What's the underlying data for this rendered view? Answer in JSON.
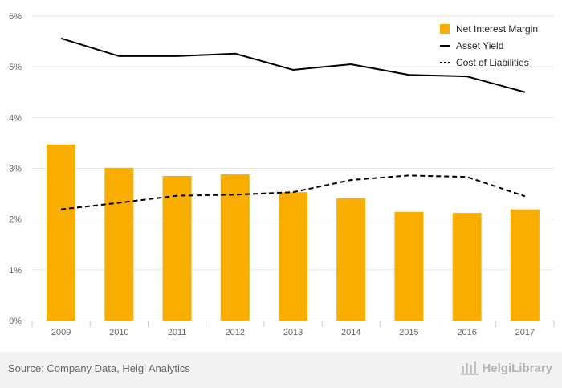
{
  "chart_data": {
    "type": "bar",
    "categories": [
      "2009",
      "2010",
      "2011",
      "2012",
      "2013",
      "2014",
      "2015",
      "2016",
      "2017"
    ],
    "series": [
      {
        "name": "Net Interest Margin",
        "kind": "bar",
        "color": "#F7AE00",
        "values": [
          3.47,
          3.01,
          2.85,
          2.88,
          2.53,
          2.41,
          2.14,
          2.12,
          2.19
        ]
      },
      {
        "name": "Asset Yield",
        "kind": "line",
        "style": "solid",
        "color": "#000000",
        "values": [
          5.56,
          5.21,
          5.21,
          5.26,
          4.94,
          5.05,
          4.84,
          4.81,
          4.5
        ]
      },
      {
        "name": "Cost of Liabilities",
        "kind": "line",
        "style": "dashed",
        "color": "#000000",
        "values": [
          2.19,
          2.32,
          2.46,
          2.48,
          2.53,
          2.77,
          2.86,
          2.83,
          2.45
        ]
      }
    ],
    "yticks": [
      "0%",
      "1%",
      "2%",
      "3%",
      "4%",
      "5%",
      "6%"
    ],
    "ylim": [
      0,
      6
    ],
    "grid": true,
    "legend_position": "top-right"
  },
  "footer": {
    "source": "Source: Company Data, Helgi Analytics",
    "brand": "HelgiLibrary"
  }
}
